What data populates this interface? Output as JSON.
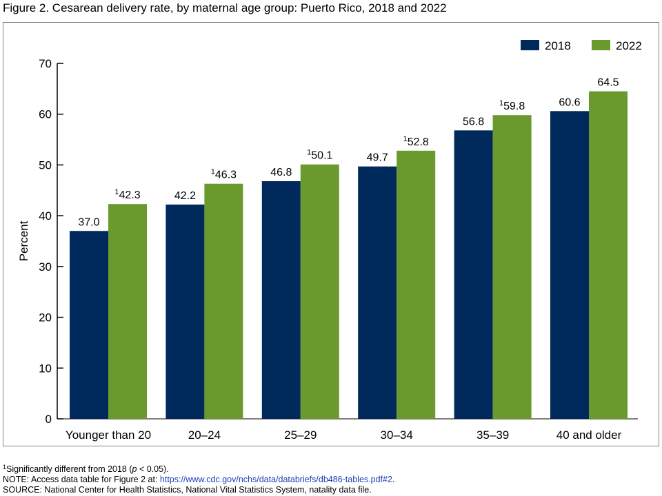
{
  "title": "Figure 2. Cesarean delivery rate, by maternal age group: Puerto Rico, 2018 and 2022",
  "chart_data": {
    "type": "bar",
    "ylabel": "Percent",
    "xlabel": "",
    "ylim": [
      0,
      70
    ],
    "yticks": [
      0,
      10,
      20,
      30,
      40,
      50,
      60,
      70
    ],
    "grid": false,
    "legend_position": "top-right",
    "categories": [
      "Younger than 20",
      "20–24",
      "25–29",
      "30–34",
      "35–39",
      "40 and older"
    ],
    "series": [
      {
        "name": "2018",
        "color": "#002a5c",
        "values": [
          37.0,
          42.2,
          46.8,
          49.7,
          56.8,
          60.6
        ],
        "labels": [
          "37.0",
          "42.2",
          "46.8",
          "49.7",
          "56.8",
          "60.6"
        ],
        "marks": [
          "",
          "",
          "",
          "",
          "",
          ""
        ]
      },
      {
        "name": "2022",
        "color": "#6a9a2e",
        "values": [
          42.3,
          46.3,
          50.1,
          52.8,
          59.8,
          64.5
        ],
        "labels": [
          "42.3",
          "46.3",
          "50.1",
          "52.8",
          "59.8",
          "64.5"
        ],
        "marks": [
          "1",
          "1",
          "1",
          "1",
          "1",
          ""
        ]
      }
    ]
  },
  "footnotes": {
    "sig_mark": "1",
    "sig_text_a": "Significantly different from 2018 (",
    "sig_p": "p",
    "sig_text_b": " < 0.05).",
    "note_prefix": "NOTE: Access data table for Figure 2 at: ",
    "note_link": "https://www.cdc.gov/nchs/data/databriefs/db486-tables.pdf#2",
    "note_suffix": ".",
    "source": "SOURCE: National Center for Health Statistics, National Vital Statistics System, natality data file."
  }
}
